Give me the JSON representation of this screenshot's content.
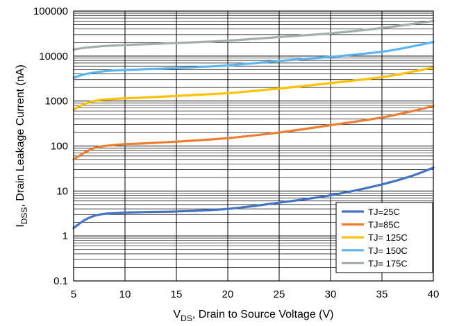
{
  "chart_data": {
    "type": "line",
    "title": "",
    "xlabel": {
      "main": "V",
      "sub": "DS",
      "rest": ", Drain to Source Voltage (V)"
    },
    "ylabel": {
      "main": "I",
      "sub": "DSS",
      "rest": ", Drain Leakage Current (nA)"
    },
    "xlim": [
      5,
      40
    ],
    "ylim": [
      0.1,
      100000
    ],
    "yscale": "log",
    "grid": true,
    "legend_position": "bottom-right",
    "x_ticks": [
      5,
      10,
      15,
      20,
      25,
      30,
      35,
      40
    ],
    "y_ticks": [
      {
        "value": 0.1,
        "label": "0.1"
      },
      {
        "value": 1,
        "label": "1"
      },
      {
        "value": 10,
        "label": "10"
      },
      {
        "value": 100,
        "label": "100"
      },
      {
        "value": 1000,
        "label": "1000"
      },
      {
        "value": 10000,
        "label": "10000"
      },
      {
        "value": 100000,
        "label": "100000"
      }
    ],
    "x": [
      5,
      6,
      7,
      8,
      9,
      10,
      12,
      15,
      20,
      25,
      30,
      35,
      38,
      40
    ],
    "series": [
      {
        "name": "TJ=25C",
        "color": "#4472C4",
        "values": [
          1.5,
          2.2,
          2.8,
          3.1,
          3.2,
          3.3,
          3.4,
          3.5,
          4.0,
          5.5,
          8.0,
          14,
          22,
          33
        ]
      },
      {
        "name": "TJ=85C",
        "color": "#ED7D31",
        "values": [
          50,
          70,
          90,
          100,
          105,
          110,
          115,
          125,
          150,
          200,
          290,
          430,
          600,
          780
        ]
      },
      {
        "name": "TJ= 125C",
        "color": "#FFC000",
        "values": [
          650,
          850,
          1000,
          1080,
          1120,
          1150,
          1200,
          1300,
          1500,
          1900,
          2500,
          3400,
          4500,
          5600
        ]
      },
      {
        "name": "TJ= 150C",
        "color": "#5BB4F2",
        "values": [
          3300,
          3900,
          4300,
          4600,
          4800,
          4900,
          5100,
          5400,
          6200,
          7800,
          9600,
          12500,
          16500,
          20500
        ]
      },
      {
        "name": "TJ= 175C",
        "color": "#A5ADAB",
        "values": [
          14000,
          15200,
          16000,
          16700,
          17200,
          17600,
          18300,
          19500,
          22000,
          26500,
          32000,
          42000,
          52000,
          60000
        ]
      }
    ]
  }
}
